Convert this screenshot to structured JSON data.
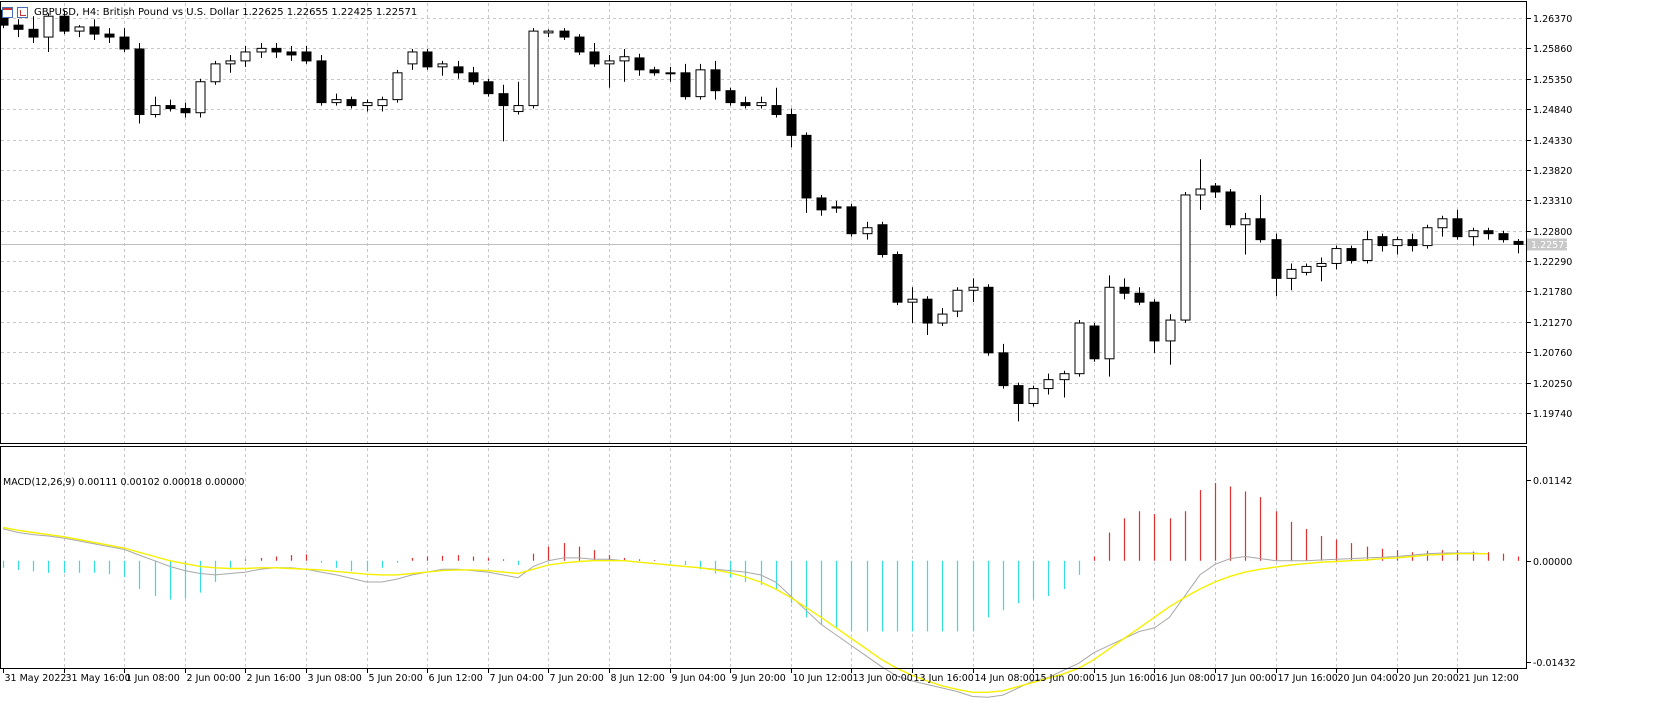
{
  "header": {
    "title": "GBPUSD, H4:  British Pound vs U.S. Dollar  1.22625 1.22655 1.22425 1.22571",
    "icons": [
      "chart-bars-icon",
      "line-chart-icon"
    ]
  },
  "colors": {
    "background": "#ffffff",
    "grid": "#c8c8c8",
    "bull_body": "#ffffff",
    "bear_body": "#000000",
    "candle_outline": "#000000",
    "hist_positive": "#e03030",
    "hist_negative": "#33dede",
    "macd_line": "#a8a8a8",
    "signal_line": "#f5f000",
    "bid_line": "#c0c0c0"
  },
  "price_panel": {
    "ticks": [
      "1.26370",
      "1.25860",
      "1.25350",
      "1.24840",
      "1.24330",
      "1.23820",
      "1.23310",
      "1.22800",
      "1.22290",
      "1.21780",
      "1.21270",
      "1.20760",
      "1.20250",
      "1.19740"
    ],
    "current_price": "1.22571"
  },
  "macd_panel": {
    "label": "MACD(12,26,9) 0.00111 0.00102 0.00018 0.00000",
    "ticks": [
      "0.01142",
      "0.00000",
      "-0.01432"
    ]
  },
  "time_axis": {
    "labels": [
      "31 May 2022",
      "31 May 16:00",
      "1 Jun 08:00",
      "2 Jun 00:00",
      "2 Jun 16:00",
      "3 Jun 08:00",
      "5 Jun 20:00",
      "6 Jun 12:00",
      "7 Jun 04:00",
      "7 Jun 20:00",
      "8 Jun 12:00",
      "9 Jun 04:00",
      "9 Jun 20:00",
      "10 Jun 12:00",
      "13 Jun 00:00",
      "13 Jun 16:00",
      "14 Jun 08:00",
      "15 Jun 00:00",
      "15 Jun 16:00",
      "16 Jun 08:00",
      "17 Jun 00:00",
      "17 Jun 16:00",
      "20 Jun 04:00",
      "20 Jun 20:00",
      "21 Jun 12:00"
    ]
  },
  "chart_data": [
    {
      "type": "candlestick",
      "symbol": "GBPUSD",
      "timeframe": "H4",
      "ylim": [
        1.195,
        1.265
      ],
      "candles": [
        {
          "o": 1.265,
          "h": 1.2655,
          "l": 1.262,
          "c": 1.2625
        },
        {
          "o": 1.2625,
          "h": 1.2635,
          "l": 1.2605,
          "c": 1.2618
        },
        {
          "o": 1.2618,
          "h": 1.264,
          "l": 1.2595,
          "c": 1.2605
        },
        {
          "o": 1.2605,
          "h": 1.2645,
          "l": 1.258,
          "c": 1.264
        },
        {
          "o": 1.264,
          "h": 1.265,
          "l": 1.261,
          "c": 1.2615
        },
        {
          "o": 1.2615,
          "h": 1.2625,
          "l": 1.2605,
          "c": 1.2622
        },
        {
          "o": 1.2622,
          "h": 1.2635,
          "l": 1.26,
          "c": 1.261
        },
        {
          "o": 1.261,
          "h": 1.262,
          "l": 1.2595,
          "c": 1.2605
        },
        {
          "o": 1.2605,
          "h": 1.262,
          "l": 1.258,
          "c": 1.2585
        },
        {
          "o": 1.2585,
          "h": 1.2595,
          "l": 1.246,
          "c": 1.2475
        },
        {
          "o": 1.2475,
          "h": 1.2505,
          "l": 1.247,
          "c": 1.249
        },
        {
          "o": 1.249,
          "h": 1.25,
          "l": 1.248,
          "c": 1.2485
        },
        {
          "o": 1.2485,
          "h": 1.2495,
          "l": 1.247,
          "c": 1.2478
        },
        {
          "o": 1.2478,
          "h": 1.2535,
          "l": 1.247,
          "c": 1.253
        },
        {
          "o": 1.253,
          "h": 1.2565,
          "l": 1.2525,
          "c": 1.256
        },
        {
          "o": 1.256,
          "h": 1.2575,
          "l": 1.2545,
          "c": 1.2565
        },
        {
          "o": 1.2565,
          "h": 1.259,
          "l": 1.2555,
          "c": 1.258
        },
        {
          "o": 1.258,
          "h": 1.2595,
          "l": 1.257,
          "c": 1.2586
        },
        {
          "o": 1.2586,
          "h": 1.2595,
          "l": 1.257,
          "c": 1.258
        },
        {
          "o": 1.258,
          "h": 1.259,
          "l": 1.2565,
          "c": 1.2575
        },
        {
          "o": 1.258,
          "h": 1.259,
          "l": 1.256,
          "c": 1.2565
        },
        {
          "o": 1.2565,
          "h": 1.2575,
          "l": 1.249,
          "c": 1.2495
        },
        {
          "o": 1.2495,
          "h": 1.251,
          "l": 1.249,
          "c": 1.25
        },
        {
          "o": 1.25,
          "h": 1.2505,
          "l": 1.2485,
          "c": 1.249
        },
        {
          "o": 1.249,
          "h": 1.25,
          "l": 1.248,
          "c": 1.2495
        },
        {
          "o": 1.249,
          "h": 1.2505,
          "l": 1.248,
          "c": 1.25
        },
        {
          "o": 1.25,
          "h": 1.255,
          "l": 1.2495,
          "c": 1.2545
        },
        {
          "o": 1.256,
          "h": 1.2585,
          "l": 1.255,
          "c": 1.258
        },
        {
          "o": 1.258,
          "h": 1.2585,
          "l": 1.255,
          "c": 1.2555
        },
        {
          "o": 1.2555,
          "h": 1.2565,
          "l": 1.254,
          "c": 1.256
        },
        {
          "o": 1.2555,
          "h": 1.2565,
          "l": 1.2535,
          "c": 1.2545
        },
        {
          "o": 1.2545,
          "h": 1.2555,
          "l": 1.2525,
          "c": 1.253
        },
        {
          "o": 1.253,
          "h": 1.2535,
          "l": 1.2505,
          "c": 1.251
        },
        {
          "o": 1.251,
          "h": 1.2525,
          "l": 1.243,
          "c": 1.249
        },
        {
          "o": 1.248,
          "h": 1.253,
          "l": 1.2475,
          "c": 1.249
        },
        {
          "o": 1.249,
          "h": 1.262,
          "l": 1.2485,
          "c": 1.2615
        },
        {
          "o": 1.2612,
          "h": 1.2618,
          "l": 1.2605,
          "c": 1.2615
        },
        {
          "o": 1.2615,
          "h": 1.262,
          "l": 1.26,
          "c": 1.2605
        },
        {
          "o": 1.2605,
          "h": 1.261,
          "l": 1.2575,
          "c": 1.258
        },
        {
          "o": 1.258,
          "h": 1.2595,
          "l": 1.2555,
          "c": 1.256
        },
        {
          "o": 1.256,
          "h": 1.2575,
          "l": 1.252,
          "c": 1.2565
        },
        {
          "o": 1.2565,
          "h": 1.2585,
          "l": 1.253,
          "c": 1.2572
        },
        {
          "o": 1.257,
          "h": 1.2577,
          "l": 1.254,
          "c": 1.255
        },
        {
          "o": 1.255,
          "h": 1.2555,
          "l": 1.254,
          "c": 1.2545
        },
        {
          "o": 1.2545,
          "h": 1.2555,
          "l": 1.253,
          "c": 1.2545
        },
        {
          "o": 1.2545,
          "h": 1.256,
          "l": 1.25,
          "c": 1.2505
        },
        {
          "o": 1.2505,
          "h": 1.256,
          "l": 1.25,
          "c": 1.255
        },
        {
          "o": 1.255,
          "h": 1.2565,
          "l": 1.25,
          "c": 1.2515
        },
        {
          "o": 1.2515,
          "h": 1.252,
          "l": 1.249,
          "c": 1.2495
        },
        {
          "o": 1.2495,
          "h": 1.2505,
          "l": 1.2485,
          "c": 1.249
        },
        {
          "o": 1.249,
          "h": 1.2505,
          "l": 1.2485,
          "c": 1.2495
        },
        {
          "o": 1.249,
          "h": 1.252,
          "l": 1.247,
          "c": 1.2475
        },
        {
          "o": 1.2475,
          "h": 1.2485,
          "l": 1.242,
          "c": 1.244
        },
        {
          "o": 1.244,
          "h": 1.2445,
          "l": 1.231,
          "c": 1.2335
        },
        {
          "o": 1.2335,
          "h": 1.234,
          "l": 1.2305,
          "c": 1.2315
        },
        {
          "o": 1.232,
          "h": 1.233,
          "l": 1.231,
          "c": 1.2318
        },
        {
          "o": 1.232,
          "h": 1.2325,
          "l": 1.227,
          "c": 1.2275
        },
        {
          "o": 1.2275,
          "h": 1.2295,
          "l": 1.2265,
          "c": 1.2285
        },
        {
          "o": 1.229,
          "h": 1.2295,
          "l": 1.2235,
          "c": 1.224
        },
        {
          "o": 1.224,
          "h": 1.2245,
          "l": 1.2155,
          "c": 1.216
        },
        {
          "o": 1.216,
          "h": 1.2185,
          "l": 1.2125,
          "c": 1.2165
        },
        {
          "o": 1.2165,
          "h": 1.217,
          "l": 1.2105,
          "c": 1.2125
        },
        {
          "o": 1.2125,
          "h": 1.215,
          "l": 1.212,
          "c": 1.214
        },
        {
          "o": 1.2145,
          "h": 1.2185,
          "l": 1.2135,
          "c": 1.218
        },
        {
          "o": 1.218,
          "h": 1.22,
          "l": 1.216,
          "c": 1.2185
        },
        {
          "o": 1.2185,
          "h": 1.219,
          "l": 1.207,
          "c": 1.2075
        },
        {
          "o": 1.2075,
          "h": 1.209,
          "l": 1.2015,
          "c": 1.202
        },
        {
          "o": 1.202,
          "h": 1.2025,
          "l": 1.196,
          "c": 1.199
        },
        {
          "o": 1.199,
          "h": 1.202,
          "l": 1.1985,
          "c": 1.2015
        },
        {
          "o": 1.2015,
          "h": 1.204,
          "l": 1.2005,
          "c": 1.203
        },
        {
          "o": 1.203,
          "h": 1.2045,
          "l": 1.2,
          "c": 1.204
        },
        {
          "o": 1.204,
          "h": 1.213,
          "l": 1.2035,
          "c": 1.2125
        },
        {
          "o": 1.212,
          "h": 1.2125,
          "l": 1.206,
          "c": 1.2065
        },
        {
          "o": 1.2065,
          "h": 1.2205,
          "l": 1.2035,
          "c": 1.2185
        },
        {
          "o": 1.2185,
          "h": 1.22,
          "l": 1.2165,
          "c": 1.2175
        },
        {
          "o": 1.2175,
          "h": 1.2185,
          "l": 1.2155,
          "c": 1.216
        },
        {
          "o": 1.216,
          "h": 1.2165,
          "l": 1.2075,
          "c": 1.2095
        },
        {
          "o": 1.2095,
          "h": 1.214,
          "l": 1.2055,
          "c": 1.213
        },
        {
          "o": 1.213,
          "h": 1.2345,
          "l": 1.2125,
          "c": 1.234
        },
        {
          "o": 1.234,
          "h": 1.24,
          "l": 1.2315,
          "c": 1.235
        },
        {
          "o": 1.2355,
          "h": 1.236,
          "l": 1.2335,
          "c": 1.2345
        },
        {
          "o": 1.2345,
          "h": 1.235,
          "l": 1.2285,
          "c": 1.229
        },
        {
          "o": 1.229,
          "h": 1.231,
          "l": 1.224,
          "c": 1.23
        },
        {
          "o": 1.23,
          "h": 1.234,
          "l": 1.226,
          "c": 1.2265
        },
        {
          "o": 1.2265,
          "h": 1.2275,
          "l": 1.217,
          "c": 1.22
        },
        {
          "o": 1.22,
          "h": 1.2225,
          "l": 1.218,
          "c": 1.2215
        },
        {
          "o": 1.221,
          "h": 1.2225,
          "l": 1.2205,
          "c": 1.222
        },
        {
          "o": 1.222,
          "h": 1.2235,
          "l": 1.2195,
          "c": 1.2225
        },
        {
          "o": 1.2225,
          "h": 1.2255,
          "l": 1.2215,
          "c": 1.225
        },
        {
          "o": 1.225,
          "h": 1.2255,
          "l": 1.2225,
          "c": 1.223
        },
        {
          "o": 1.223,
          "h": 1.228,
          "l": 1.2225,
          "c": 1.2265
        },
        {
          "o": 1.227,
          "h": 1.2275,
          "l": 1.2245,
          "c": 1.2255
        },
        {
          "o": 1.2255,
          "h": 1.227,
          "l": 1.224,
          "c": 1.2265
        },
        {
          "o": 1.2265,
          "h": 1.2275,
          "l": 1.2245,
          "c": 1.2255
        },
        {
          "o": 1.2255,
          "h": 1.229,
          "l": 1.225,
          "c": 1.2285
        },
        {
          "o": 1.2285,
          "h": 1.2305,
          "l": 1.227,
          "c": 1.23
        },
        {
          "o": 1.23,
          "h": 1.2315,
          "l": 1.2265,
          "c": 1.227
        },
        {
          "o": 1.227,
          "h": 1.2285,
          "l": 1.2255,
          "c": 1.228
        },
        {
          "o": 1.228,
          "h": 1.2285,
          "l": 1.2265,
          "c": 1.2275
        },
        {
          "o": 1.2275,
          "h": 1.228,
          "l": 1.226,
          "c": 1.2265
        },
        {
          "o": 1.2262,
          "h": 1.2266,
          "l": 1.2242,
          "c": 1.2257
        }
      ]
    },
    {
      "type": "bar",
      "indicator": "MACD(12,26,9)",
      "ylim": [
        -0.01432,
        0.01142
      ],
      "histogram": [
        -0.001,
        -0.0013,
        -0.0015,
        -0.0017,
        -0.0017,
        -0.0017,
        -0.0017,
        -0.0019,
        -0.0023,
        -0.004,
        -0.005,
        -0.0055,
        -0.0053,
        -0.0045,
        -0.003,
        -0.001,
        0.0002,
        0.0004,
        0.0006,
        0.0008,
        0.0009,
        -0.0003,
        -0.001,
        -0.0015,
        -0.0015,
        -0.001,
        -0.0003,
        0.0004,
        0.0006,
        0.0007,
        0.0008,
        0.0006,
        0.0004,
        0.0002,
        -0.0006,
        0.001,
        0.002,
        0.0025,
        0.002,
        0.0015,
        0.0008,
        0.0004,
        0.0002,
        0.0001,
        -0.0002,
        -0.0006,
        -0.0012,
        -0.0018,
        -0.0024,
        -0.003,
        -0.0034,
        -0.004,
        -0.006,
        -0.008,
        -0.009,
        -0.0095,
        -0.01,
        -0.01,
        -0.01,
        -0.01,
        -0.01,
        -0.01,
        -0.01,
        -0.01,
        -0.01,
        -0.008,
        -0.007,
        -0.006,
        -0.0055,
        -0.005,
        -0.004,
        -0.002,
        0.0006,
        0.004,
        0.006,
        0.007,
        0.0066,
        0.006,
        0.007,
        0.01,
        0.011,
        0.0105,
        0.0098,
        0.009,
        0.007,
        0.0055,
        0.0045,
        0.0035,
        0.003,
        0.0025,
        0.002,
        0.0017,
        0.0015,
        0.0012,
        0.0014,
        0.0015,
        0.0015,
        0.0013,
        0.0012,
        0.001,
        0.0006
      ],
      "macd": [
        0.0045,
        0.004,
        0.0037,
        0.0035,
        0.0032,
        0.0028,
        0.0024,
        0.002,
        0.0016,
        0.0008,
        0.0,
        -0.0008,
        -0.0014,
        -0.0018,
        -0.002,
        -0.0018,
        -0.0016,
        -0.0012,
        -0.001,
        -0.001,
        -0.0012,
        -0.0016,
        -0.002,
        -0.0025,
        -0.003,
        -0.003,
        -0.0026,
        -0.002,
        -0.0016,
        -0.0012,
        -0.0012,
        -0.0014,
        -0.0016,
        -0.002,
        -0.0024,
        -0.0008,
        0.0,
        0.0004,
        0.0004,
        0.0002,
        0.0002,
        0.0,
        -0.0002,
        -0.0004,
        -0.0006,
        -0.0008,
        -0.001,
        -0.0012,
        -0.0014,
        -0.0016,
        -0.002,
        -0.003,
        -0.005,
        -0.007,
        -0.009,
        -0.0105,
        -0.012,
        -0.0135,
        -0.015,
        -0.0163,
        -0.017,
        -0.0175,
        -0.018,
        -0.0185,
        -0.0192,
        -0.0193,
        -0.019,
        -0.018,
        -0.017,
        -0.0165,
        -0.0155,
        -0.0145,
        -0.013,
        -0.012,
        -0.011,
        -0.01,
        -0.0095,
        -0.008,
        -0.005,
        -0.002,
        -0.0005,
        0.0003,
        0.0006,
        0.0003,
        0.0,
        0.0,
        0.0,
        0.0001,
        0.0002,
        0.0003,
        0.0004,
        0.0005,
        0.0006,
        0.0008,
        0.001,
        0.0011,
        0.0011,
        0.0011,
        0.001
      ],
      "signal": [
        0.0047,
        0.0043,
        0.004,
        0.0037,
        0.0034,
        0.003,
        0.0026,
        0.0022,
        0.0018,
        0.0012,
        0.0006,
        0.0,
        -0.0004,
        -0.0008,
        -0.001,
        -0.0011,
        -0.0011,
        -0.001,
        -0.001,
        -0.0011,
        -0.0012,
        -0.0013,
        -0.0015,
        -0.0017,
        -0.0019,
        -0.002,
        -0.002,
        -0.0018,
        -0.0016,
        -0.0014,
        -0.0013,
        -0.0013,
        -0.0014,
        -0.0016,
        -0.0018,
        -0.0012,
        -0.0006,
        -0.0003,
        -0.0001,
        -0.0,
        0.0,
        0.0,
        -0.0002,
        -0.0004,
        -0.0006,
        -0.0008,
        -0.001,
        -0.0013,
        -0.0017,
        -0.0023,
        -0.003,
        -0.004,
        -0.0052,
        -0.0066,
        -0.008,
        -0.0095,
        -0.011,
        -0.0125,
        -0.014,
        -0.0152,
        -0.0162,
        -0.017,
        -0.0177,
        -0.0182,
        -0.0186,
        -0.0186,
        -0.0184,
        -0.0178,
        -0.0172,
        -0.0166,
        -0.016,
        -0.0152,
        -0.014,
        -0.0125,
        -0.011,
        -0.0095,
        -0.008,
        -0.0065,
        -0.0052,
        -0.004,
        -0.003,
        -0.0022,
        -0.0016,
        -0.0012,
        -0.0009,
        -0.0006,
        -0.0004,
        -0.0002,
        -0.0001,
        0.0,
        0.0001,
        0.0003,
        0.0004,
        0.0006,
        0.0008,
        0.0009,
        0.001,
        0.001,
        0.001
      ]
    }
  ]
}
